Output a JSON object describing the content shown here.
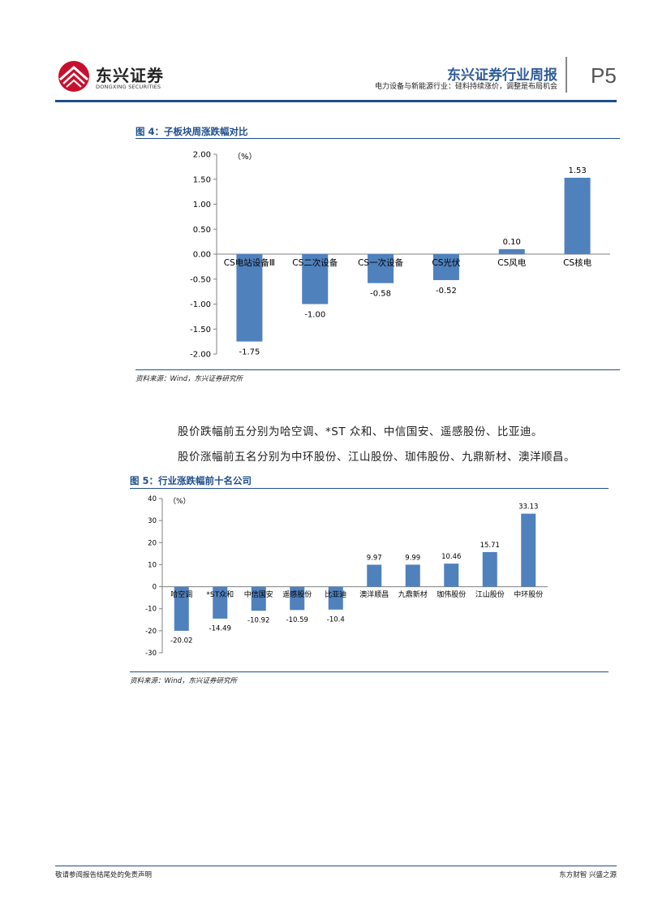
{
  "header": {
    "logo_cn": "东兴证券",
    "logo_en": "DONGXING SECURITIES",
    "report_title": "东兴证券行业周报",
    "report_subtitle": "电力设备与新能源行业：硅料持续涨价，调整是布局机会",
    "page_number": "P5"
  },
  "figure4": {
    "title": "图 4：子板块周涨跌幅对比",
    "source": "资料来源：Wind，东兴证券研究所"
  },
  "paragraphs": [
    "股价跌幅前五分别为哈空调、*ST 众和、中信国安、遥感股份、比亚迪。",
    "股价涨幅前五名分别为中环股份、江山股份、珈伟股份、九鼎新材、澳洋顺昌。"
  ],
  "figure5": {
    "title": "图 5：行业涨跌幅前十名公司",
    "source": "资料来源：Wind，东兴证券研究所"
  },
  "footer": {
    "left": "敬请参阅报告结尾处的免责声明",
    "right": "东方财智 兴盛之源"
  },
  "colors": {
    "accent": "#1f4e8c",
    "bar": "#4f81bd",
    "logo_red": "#c8102e"
  },
  "chart_data": [
    {
      "type": "bar",
      "title": "",
      "ylabel": "（%）",
      "ylim": [
        -2.0,
        2.0
      ],
      "yticks": [
        2.0,
        1.5,
        1.0,
        0.5,
        0.0,
        -0.5,
        -1.0,
        -1.5,
        -2.0
      ],
      "ytick_labels": [
        "2.00",
        "1.50",
        "1.00",
        "0.50",
        "0.00",
        "-0.50",
        "-1.00",
        "-1.50",
        "-2.00"
      ],
      "categories": [
        "CS电站设备Ⅲ",
        "CS二次设备",
        "CS一次设备",
        "CS光伏",
        "CS风电",
        "CS核电"
      ],
      "values": [
        -1.75,
        -1.0,
        -0.58,
        -0.52,
        0.1,
        1.53
      ],
      "value_labels": [
        "-1.75",
        "-1.00",
        "-0.58",
        "-0.52",
        "0.10",
        "1.53"
      ],
      "grid": false,
      "legend": "none"
    },
    {
      "type": "bar",
      "title": "",
      "ylabel": "（%）",
      "ylim": [
        -30,
        40
      ],
      "yticks": [
        40,
        30,
        20,
        10,
        0,
        -10,
        -20,
        -30
      ],
      "ytick_labels": [
        "40",
        "30",
        "20",
        "10",
        "0",
        "-10",
        "-20",
        "-30"
      ],
      "categories": [
        "哈空调",
        "*ST众和",
        "中信国安",
        "遥感股份",
        "比亚迪",
        "澳洋顺昌",
        "九鼎新材",
        "珈伟股份",
        "江山股份",
        "中环股份"
      ],
      "values": [
        -20.02,
        -14.49,
        -10.92,
        -10.59,
        -10.4,
        9.97,
        9.99,
        10.46,
        15.71,
        33.13
      ],
      "value_labels": [
        "-20.02",
        "-14.49",
        "-10.92",
        "-10.59",
        "-10.4",
        "9.97",
        "9.99",
        "10.46",
        "15.71",
        "33.13"
      ],
      "grid": false,
      "legend": "none"
    }
  ]
}
